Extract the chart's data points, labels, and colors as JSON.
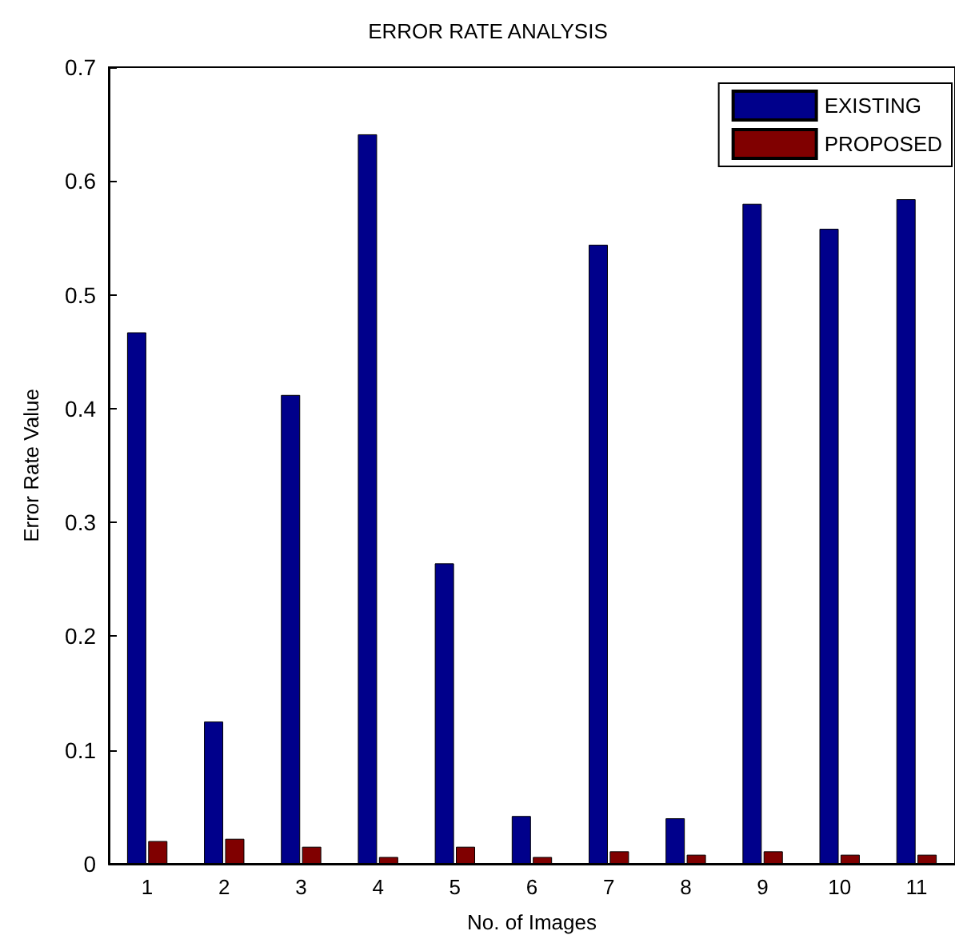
{
  "chart_data": {
    "type": "bar",
    "title": "ERROR RATE ANALYSIS",
    "xlabel": "No. of Images",
    "ylabel": "Error Rate Value",
    "categories": [
      "1",
      "2",
      "3",
      "4",
      "5",
      "6",
      "7",
      "8",
      "9",
      "10",
      "11"
    ],
    "series": [
      {
        "name": "EXISTING",
        "color": "#00008b",
        "values": [
          0.467,
          0.125,
          0.412,
          0.641,
          0.264,
          0.042,
          0.544,
          0.04,
          0.58,
          0.558,
          0.584
        ]
      },
      {
        "name": "PROPOSED",
        "color": "#800000",
        "values": [
          0.02,
          0.022,
          0.015,
          0.006,
          0.015,
          0.006,
          0.011,
          0.008,
          0.011,
          0.008,
          0.008
        ]
      }
    ],
    "ylim": [
      0,
      0.7
    ],
    "yticks": [
      0,
      0.1,
      0.2,
      0.3,
      0.4,
      0.5,
      0.6,
      0.7
    ],
    "grid": false,
    "legend": "top right"
  }
}
